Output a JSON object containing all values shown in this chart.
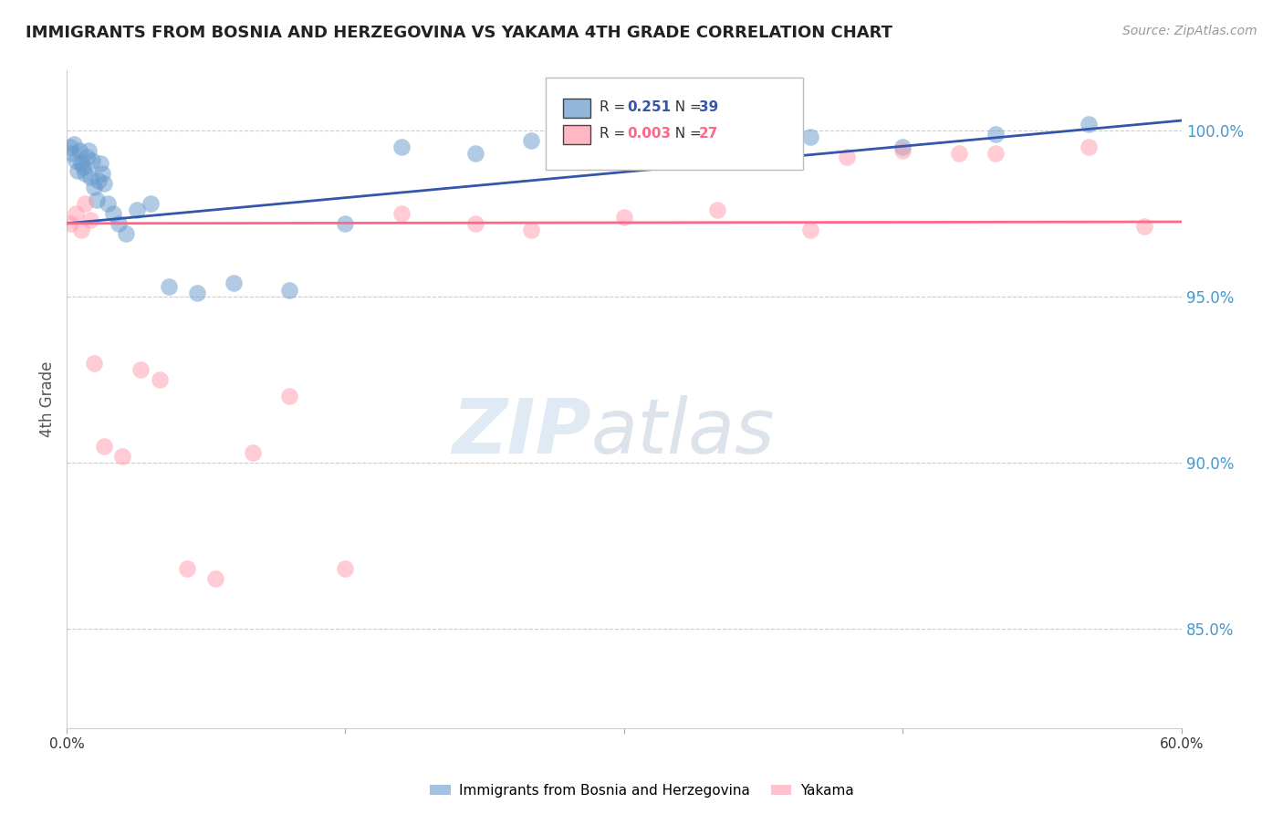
{
  "title": "IMMIGRANTS FROM BOSNIA AND HERZEGOVINA VS YAKAMA 4TH GRADE CORRELATION CHART",
  "source": "Source: ZipAtlas.com",
  "ylabel": "4th Grade",
  "x_min": 0.0,
  "x_max": 60.0,
  "y_min": 82.0,
  "y_max": 101.8,
  "R_blue": 0.251,
  "N_blue": 39,
  "R_pink": 0.003,
  "N_pink": 27,
  "blue_color": "#6699CC",
  "pink_color": "#FF99AA",
  "blue_line_color": "#3355AA",
  "pink_line_color": "#FF6688",
  "blue_scatter_x": [
    0.2,
    0.3,
    0.4,
    0.5,
    0.6,
    0.7,
    0.8,
    0.9,
    1.0,
    1.1,
    1.2,
    1.3,
    1.4,
    1.5,
    1.6,
    1.7,
    1.8,
    1.9,
    2.0,
    2.2,
    2.5,
    2.8,
    3.2,
    3.8,
    4.5,
    5.5,
    7.0,
    9.0,
    12.0,
    15.0,
    18.0,
    22.0,
    25.0,
    30.0,
    35.0,
    40.0,
    45.0,
    50.0,
    55.0
  ],
  "blue_scatter_y": [
    99.5,
    99.3,
    99.6,
    99.1,
    98.8,
    99.4,
    99.0,
    98.9,
    98.7,
    99.2,
    99.4,
    98.6,
    99.1,
    98.3,
    97.9,
    98.5,
    99.0,
    98.7,
    98.4,
    97.8,
    97.5,
    97.2,
    96.9,
    97.6,
    97.8,
    95.3,
    95.1,
    95.4,
    95.2,
    97.2,
    99.5,
    99.3,
    99.7,
    99.4,
    99.6,
    99.8,
    99.5,
    99.9,
    100.2
  ],
  "pink_scatter_x": [
    0.2,
    0.5,
    0.8,
    1.0,
    1.3,
    1.5,
    2.0,
    3.0,
    4.0,
    5.0,
    6.5,
    8.0,
    10.0,
    12.0,
    15.0,
    18.0,
    22.0,
    25.0,
    30.0,
    35.0,
    40.0,
    45.0,
    50.0,
    55.0,
    58.0,
    42.0,
    48.0
  ],
  "pink_scatter_y": [
    97.2,
    97.5,
    97.0,
    97.8,
    97.3,
    93.0,
    90.5,
    90.2,
    92.8,
    92.5,
    86.8,
    86.5,
    90.3,
    92.0,
    86.8,
    97.5,
    97.2,
    97.0,
    97.4,
    97.6,
    97.0,
    99.4,
    99.3,
    99.5,
    97.1,
    99.2,
    99.3
  ],
  "pink_flat_y": 97.2,
  "blue_line_y0": 97.2,
  "blue_line_y1": 100.3
}
